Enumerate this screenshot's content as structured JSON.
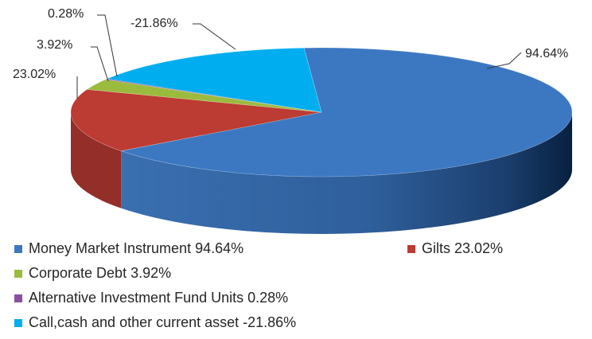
{
  "chart_data": {
    "type": "pie",
    "style": "3d",
    "series": [
      {
        "name": "Money Market Instrument",
        "value": 94.64,
        "label": "94.64%",
        "color": "#3c78c2"
      },
      {
        "name": "Gilts",
        "value": 23.02,
        "label": "23.02%",
        "color": "#bc3b33"
      },
      {
        "name": "Corporate Debt",
        "value": 3.92,
        "label": "3.92%",
        "color": "#9bbb3f"
      },
      {
        "name": "Alternative Investment Fund Units",
        "value": 0.28,
        "label": "0.28%",
        "color": "#8b4fa0"
      },
      {
        "name": "Call,cash and other current asset",
        "value": -21.86,
        "label": "-21.86%",
        "color": "#00aeef"
      }
    ],
    "legend": {
      "position": "bottom",
      "entries": [
        "Money Market Instrument  94.64%",
        "Gilts  23.02%",
        "Corporate Debt  3.92%",
        "Alternative Investment Fund Units  0.28%",
        "Call,cash and other current asset  -21.86%"
      ]
    }
  }
}
